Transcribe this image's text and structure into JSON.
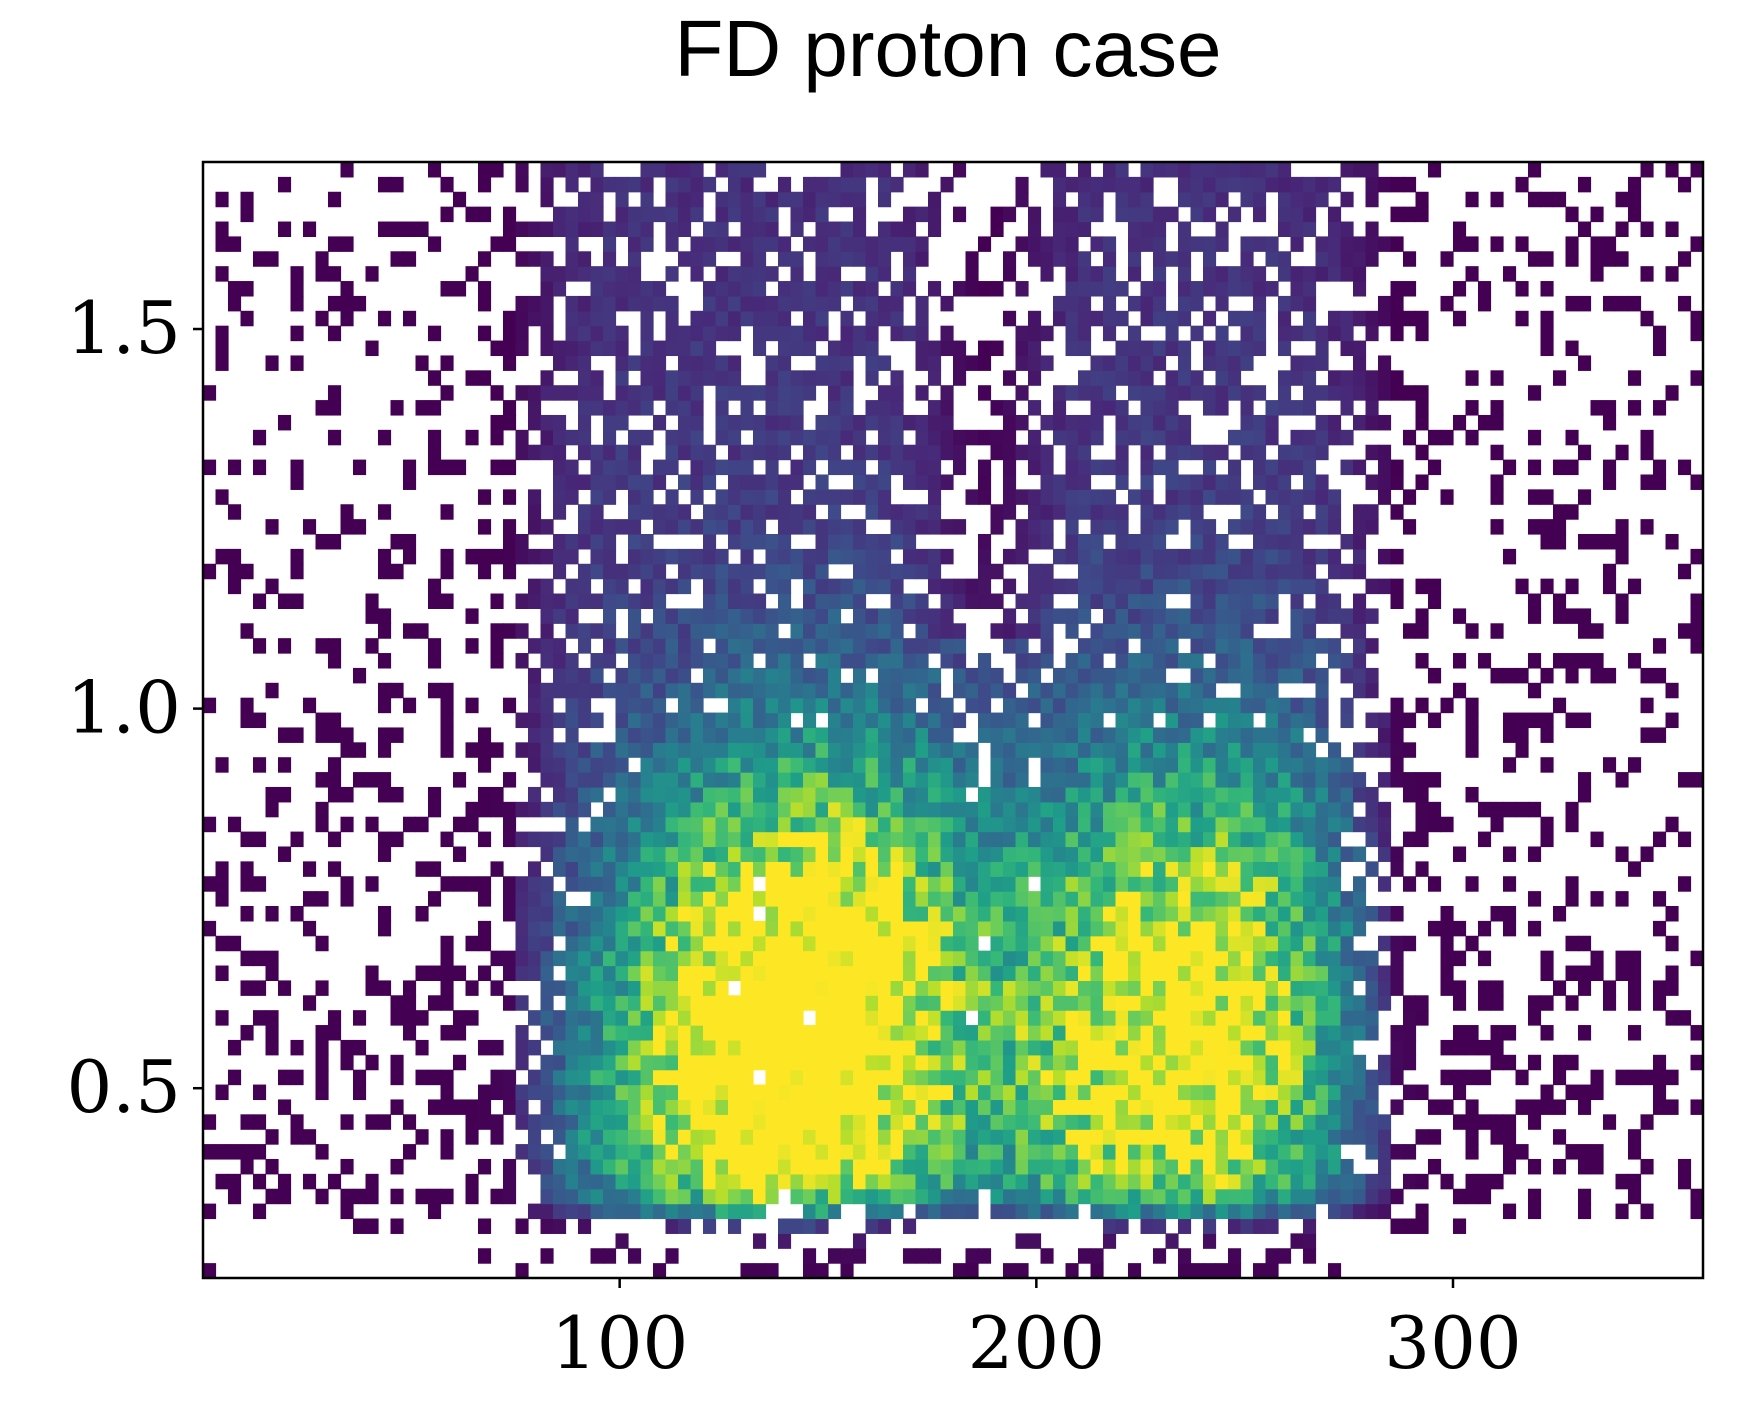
{
  "chart_data": {
    "type": "heatmap",
    "title": "FD proton case",
    "xlabel": "",
    "ylabel": "",
    "xlim": [
      0,
      360
    ],
    "ylim": [
      0.25,
      1.72
    ],
    "x_ticks": [
      {
        "value": 100,
        "label": "100"
      },
      {
        "value": 200,
        "label": "200"
      },
      {
        "value": 300,
        "label": "300"
      }
    ],
    "y_ticks": [
      {
        "value": 0.5,
        "label": "0.5"
      },
      {
        "value": 1.0,
        "label": "1.0"
      },
      {
        "value": 1.5,
        "label": "1.5"
      }
    ],
    "colormap": "viridis",
    "grid": false,
    "legend": "none",
    "bins": {
      "x": 120,
      "y": 75
    },
    "density_peaks": [
      {
        "x": 135,
        "y": 0.5,
        "relative_density": 1.0
      },
      {
        "x": 150,
        "y": 0.68,
        "relative_density": 0.85
      },
      {
        "x": 232,
        "y": 0.5,
        "relative_density": 0.8
      },
      {
        "x": 240,
        "y": 0.7,
        "relative_density": 0.6
      }
    ]
  }
}
